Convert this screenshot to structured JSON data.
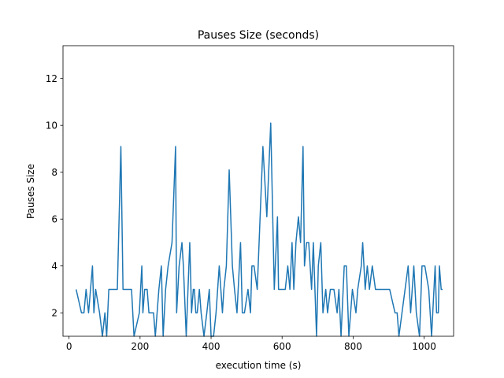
{
  "chart_data": {
    "type": "line",
    "title": "Pauses Size (seconds)",
    "xlabel": "execution time (s)",
    "ylabel": "Pauses Size",
    "xlim": [
      -17,
      1083
    ],
    "ylim": [
      1.0,
      13.4
    ],
    "xticks": [
      0,
      200,
      400,
      600,
      800,
      1000
    ],
    "xtick_labels": [
      "0",
      "200",
      "400",
      "600",
      "800",
      "1000"
    ],
    "yticks": [
      2,
      4,
      6,
      8,
      10,
      12
    ],
    "ytick_labels": [
      "2",
      "4",
      "6",
      "8",
      "10",
      "12"
    ],
    "grid": false,
    "series": [
      {
        "name": "",
        "color": "#1f77b4",
        "x": [
          20,
          35,
          42,
          48,
          55,
          66,
          70,
          75,
          86,
          94,
          101,
          106,
          112,
          120,
          127,
          136,
          146,
          152,
          157,
          163,
          169,
          176,
          183,
          198,
          205,
          208,
          213,
          220,
          225,
          229,
          234,
          238,
          243,
          253,
          260,
          265,
          272,
          279,
          290,
          300,
          303,
          310,
          318,
          322,
          330,
          340,
          345,
          350,
          353,
          357,
          361,
          367,
          372,
          380,
          388,
          395,
          400,
          407,
          414,
          423,
          432,
          436,
          443,
          451,
          460,
          466,
          473,
          483,
          488,
          494,
          504,
          511,
          515,
          521,
          530,
          546,
          557,
          568,
          578,
          587,
          590,
          598,
          609,
          616,
          622,
          628,
          633,
          639,
          646,
          652,
          659,
          663,
          669,
          675,
          683,
          688,
          697,
          702,
          709,
          715,
          723,
          728,
          736,
          746,
          755,
          760,
          766,
          775,
          781,
          788,
          798,
          808,
          813,
          823,
          827,
          834,
          840,
          846,
          854,
          863,
          892,
          898,
          903,
          918,
          924,
          929,
          955,
          962,
          971,
          978,
          987,
          994,
          1002,
          1013,
          1021,
          1031,
          1035,
          1040,
          1043,
          1048,
          1052
        ],
        "y": [
          3.0,
          2.0,
          2.0,
          3.0,
          2.0,
          4.0,
          2.0,
          3.0,
          2.0,
          1.0,
          2.0,
          1.0,
          3.0,
          3.0,
          3.0,
          3.0,
          9.1,
          3.0,
          3.0,
          3.0,
          3.0,
          3.0,
          1.0,
          2.0,
          4.0,
          2.0,
          3.0,
          3.0,
          2.0,
          2.0,
          2.0,
          2.0,
          1.0,
          3.0,
          4.0,
          1.0,
          3.0,
          4.0,
          5.0,
          9.1,
          2.0,
          4.0,
          5.0,
          4.0,
          1.0,
          5.0,
          2.0,
          3.0,
          3.0,
          2.0,
          2.0,
          3.0,
          2.0,
          1.0,
          2.0,
          3.0,
          1.0,
          1.0,
          2.0,
          4.0,
          2.0,
          3.0,
          4.0,
          8.1,
          4.0,
          3.0,
          2.0,
          5.0,
          2.0,
          2.0,
          3.0,
          2.0,
          4.0,
          4.0,
          3.0,
          9.1,
          6.1,
          10.1,
          3.0,
          6.1,
          3.0,
          3.0,
          3.0,
          4.0,
          3.0,
          5.0,
          3.0,
          5.0,
          6.1,
          5.0,
          9.1,
          4.0,
          5.0,
          5.0,
          3.0,
          5.0,
          1.0,
          4.0,
          5.0,
          2.0,
          3.0,
          2.0,
          3.0,
          3.0,
          2.0,
          3.0,
          1.0,
          4.0,
          4.0,
          1.0,
          3.0,
          2.0,
          3.0,
          4.0,
          5.0,
          3.0,
          4.0,
          3.0,
          4.0,
          3.0,
          3.0,
          3.0,
          3.0,
          2.0,
          2.0,
          1.0,
          4.0,
          2.0,
          4.0,
          2.0,
          1.0,
          4.0,
          4.0,
          3.0,
          1.0,
          4.0,
          2.0,
          2.0,
          4.0,
          3.0,
          3.0
        ]
      }
    ]
  }
}
